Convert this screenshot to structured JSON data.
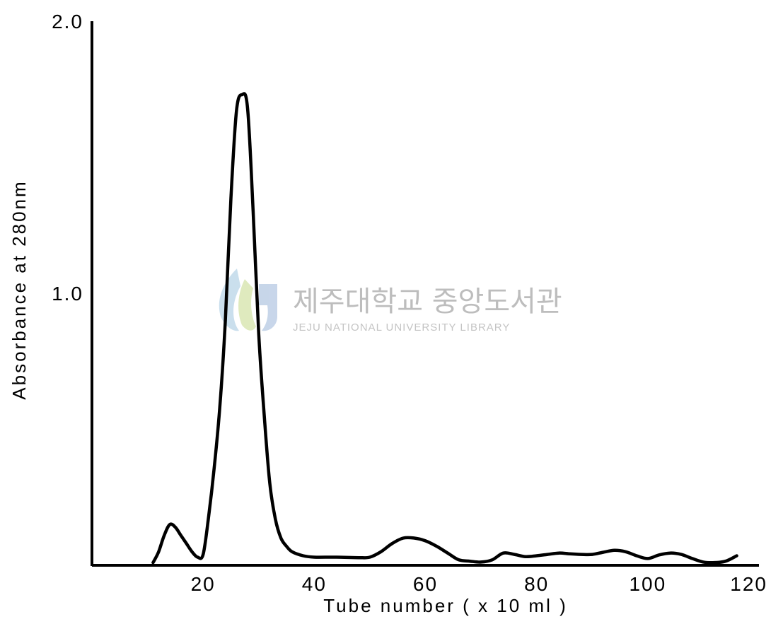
{
  "chart_data": {
    "type": "line",
    "title": "",
    "xlabel": "Tube number ( x 10 ml )",
    "ylabel": "Absorbance at 280nm",
    "xlim": [
      0,
      120
    ],
    "ylim": [
      0,
      2.0
    ],
    "x_ticks": [
      20,
      40,
      60,
      80,
      100,
      120
    ],
    "x_tick_labels": [
      "20",
      "40",
      "60",
      "80",
      "100",
      "120"
    ],
    "y_ticks": [
      1.0,
      2.0
    ],
    "y_tick_labels": [
      "1.0",
      "2.0"
    ],
    "grid": false,
    "legend": "none",
    "series": [
      {
        "color": "#000000",
        "x": [
          11,
          12,
          13,
          14,
          15,
          16,
          17,
          18,
          19,
          20,
          21,
          22,
          23,
          24,
          25,
          26,
          27,
          28,
          29,
          30,
          31,
          32,
          33,
          34,
          35,
          36,
          38,
          40,
          44,
          48,
          50,
          52,
          54,
          56,
          58,
          60,
          62,
          64,
          66,
          68,
          70,
          72,
          74,
          76,
          78,
          80,
          82,
          84,
          86,
          88,
          90,
          92,
          94,
          96,
          98,
          100,
          102,
          104,
          106,
          108,
          110,
          112,
          114,
          116
        ],
        "y": [
          0.01,
          0.05,
          0.11,
          0.15,
          0.14,
          0.11,
          0.08,
          0.05,
          0.03,
          0.04,
          0.18,
          0.36,
          0.58,
          0.9,
          1.35,
          1.67,
          1.73,
          1.68,
          1.3,
          0.85,
          0.55,
          0.3,
          0.17,
          0.1,
          0.07,
          0.05,
          0.035,
          0.03,
          0.03,
          0.028,
          0.03,
          0.05,
          0.08,
          0.1,
          0.1,
          0.09,
          0.07,
          0.045,
          0.02,
          0.015,
          0.012,
          0.02,
          0.045,
          0.04,
          0.032,
          0.035,
          0.04,
          0.045,
          0.042,
          0.04,
          0.04,
          0.048,
          0.055,
          0.05,
          0.035,
          0.025,
          0.038,
          0.045,
          0.04,
          0.025,
          0.012,
          0.01,
          0.015,
          0.035
        ]
      }
    ],
    "watermark": {
      "korean": "제주대학교 중앙도서관",
      "english": "JEJU NATIONAL UNIVERSITY  LIBRARY"
    }
  }
}
